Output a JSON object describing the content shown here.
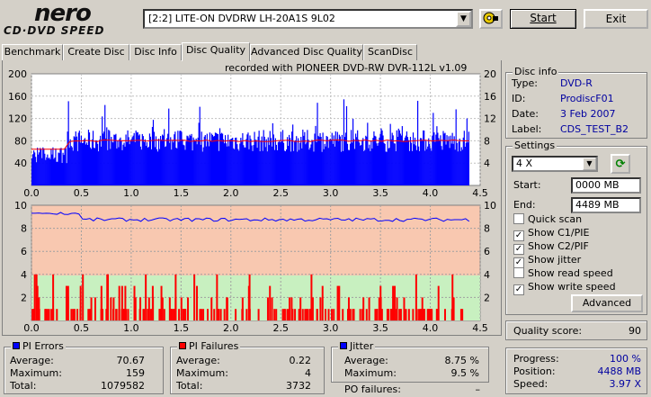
{
  "logo": {
    "top": "nero",
    "bottom": "CD·DVD SPEED"
  },
  "toolbar": {
    "drive": "[2:2]  LITE-ON DVDRW LH-20A1S 9L02",
    "start_label": "Start",
    "exit_label": "Exit"
  },
  "tabs": [
    {
      "label": "Benchmark",
      "active": false
    },
    {
      "label": "Create Disc",
      "active": false
    },
    {
      "label": "Disc Info",
      "active": false
    },
    {
      "label": "Disc Quality",
      "active": true
    },
    {
      "label": "Advanced Disc Quality",
      "active": false
    },
    {
      "label": "ScanDisc",
      "active": false
    }
  ],
  "recorded_with": "recorded with PIONEER DVD-RW  DVR-112L v1.09",
  "chart_data": [
    {
      "type": "bar",
      "name": "PI Errors / Read speed",
      "x_ticks": [
        "0.0",
        "0.5",
        "1.0",
        "1.5",
        "2.0",
        "2.5",
        "3.0",
        "3.5",
        "4.0",
        "4.5"
      ],
      "y_ticks_left": [
        "200",
        "160",
        "120",
        "80",
        "40"
      ],
      "y_ticks_right": [
        "20",
        "16",
        "12",
        "8",
        "4"
      ],
      "xlim": [
        0,
        4.5
      ],
      "ylim_left": [
        0,
        200
      ],
      "ylim_right": [
        0,
        20
      ],
      "pi_average": 70.67,
      "pi_max": 159,
      "write_speed_x": 8,
      "colors": {
        "bars": "#0000ff",
        "speed": "#ff0000",
        "bg": "#ffffff"
      }
    },
    {
      "type": "bar",
      "name": "PI Failures / Jitter",
      "x_ticks": [
        "0.0",
        "0.5",
        "1.0",
        "1.5",
        "2.0",
        "2.5",
        "3.0",
        "3.5",
        "4.0",
        "4.5"
      ],
      "y_ticks_left": [
        "10",
        "8",
        "6",
        "4",
        "2"
      ],
      "y_ticks_right": [
        "10",
        "8",
        "6",
        "4",
        "2"
      ],
      "xlim": [
        0,
        4.5
      ],
      "ylim": [
        0,
        10
      ],
      "jitter_average": 8.75,
      "pif_max": 4,
      "colors": {
        "bars": "#ff0000",
        "jitter": "#0000ff",
        "bg_upper": "#f8c8b0",
        "bg_lower": "#c8f0c0"
      }
    }
  ],
  "disc_info": {
    "title": "Disc info",
    "rows": [
      {
        "label": "Type:",
        "value": "DVD-R"
      },
      {
        "label": "ID:",
        "value": "ProdiscF01"
      },
      {
        "label": "Date:",
        "value": "3 Feb 2007"
      },
      {
        "label": "Label:",
        "value": "CDS_TEST_B2"
      }
    ]
  },
  "settings": {
    "title": "Settings",
    "speed": "4 X",
    "start_label": "Start:",
    "start_value": "0000 MB",
    "end_label": "End:",
    "end_value": "4489 MB",
    "checks": [
      {
        "label": "Quick scan",
        "checked": false
      },
      {
        "label": "Show C1/PIE",
        "checked": true
      },
      {
        "label": "Show C2/PIF",
        "checked": true
      },
      {
        "label": "Show jitter",
        "checked": true
      },
      {
        "label": "Show read speed",
        "checked": false
      },
      {
        "label": "Show write speed",
        "checked": true
      }
    ],
    "advanced_label": "Advanced"
  },
  "quality": {
    "label": "Quality score:",
    "value": "90"
  },
  "progress": {
    "rows": [
      {
        "label": "Progress:",
        "value": "100 %"
      },
      {
        "label": "Position:",
        "value": "4488 MB"
      },
      {
        "label": "Speed:",
        "value": "3.97 X"
      }
    ]
  },
  "pi_errors": {
    "title": "PI Errors",
    "color": "#0000ff",
    "rows": [
      {
        "label": "Average:",
        "value": "70.67"
      },
      {
        "label": "Maximum:",
        "value": "159"
      },
      {
        "label": "Total:",
        "value": "1079582"
      }
    ]
  },
  "pi_failures": {
    "title": "PI Failures",
    "color": "#ff0000",
    "rows": [
      {
        "label": "Average:",
        "value": "0.22"
      },
      {
        "label": "Maximum:",
        "value": "4"
      },
      {
        "label": "Total:",
        "value": "3732"
      }
    ]
  },
  "jitter": {
    "title": "Jitter",
    "color": "#0000ff",
    "rows": [
      {
        "label": "Average:",
        "value": "8.75 %"
      },
      {
        "label": "Maximum:",
        "value": "9.5 %"
      }
    ]
  },
  "po_failures": {
    "label": "PO failures:",
    "value": "–"
  }
}
